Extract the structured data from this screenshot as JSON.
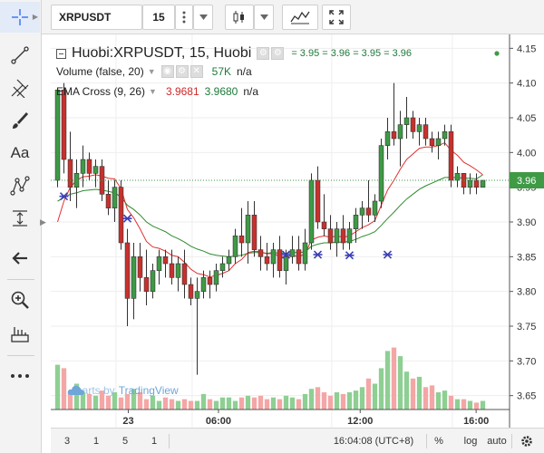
{
  "toolbar": {
    "symbol": "XRPUSDT",
    "interval": "15"
  },
  "legend": {
    "main_title": "Huobi:XRPUSDT, 15, Huobi",
    "ohlc": "= 3.95 = 3.96 = 3.95 = 3.96",
    "volume_title": "Volume (false, 20)",
    "volume_value": "57K",
    "volume_na": "n/a",
    "ema_title": "EMA Cross (9, 26)",
    "ema_fast": "3.9681",
    "ema_slow": "3.9680",
    "ema_na": "n/a"
  },
  "watermark": {
    "prefix": "charts by",
    "brand": "TradingView"
  },
  "price_axis": {
    "labels": [
      "4.15",
      "4.10",
      "4.05",
      "4.00",
      "3.95",
      "3.90",
      "3.85",
      "3.80",
      "3.75",
      "3.70",
      "3.65"
    ],
    "current_price": "3.96"
  },
  "time_axis": {
    "labels": [
      "23",
      "06:00",
      "12:00",
      "16:00"
    ]
  },
  "bottombar": {
    "ranges": [
      "3",
      "1",
      "5",
      "1"
    ],
    "clock": "16:04:08 (UTC+8)",
    "percent": "%",
    "log": "log",
    "auto": "auto"
  },
  "colors": {
    "up": "#3e9a45",
    "down": "#c9302c",
    "up_volume": "#8ecf93",
    "down_volume": "#f4a6a6",
    "ema_fast": "#e03030",
    "ema_slow": "#2e8b2e",
    "accent": "#2962ff"
  },
  "chart_data": {
    "type": "candlestick",
    "symbol": "XRPUSDT",
    "ylim": [
      3.63,
      4.17
    ],
    "candles": [
      {
        "o": 3.96,
        "h": 4.09,
        "l": 3.95,
        "c": 4.09
      },
      {
        "o": 4.09,
        "h": 4.1,
        "l": 3.97,
        "c": 3.99
      },
      {
        "o": 3.99,
        "h": 4.03,
        "l": 3.93,
        "c": 3.95
      },
      {
        "o": 3.95,
        "h": 3.99,
        "l": 3.92,
        "c": 3.97
      },
      {
        "o": 3.97,
        "h": 4.01,
        "l": 3.95,
        "c": 3.99
      },
      {
        "o": 3.99,
        "h": 4.0,
        "l": 3.96,
        "c": 3.97
      },
      {
        "o": 3.97,
        "h": 3.99,
        "l": 3.95,
        "c": 3.98
      },
      {
        "o": 3.98,
        "h": 3.99,
        "l": 3.93,
        "c": 3.94
      },
      {
        "o": 3.94,
        "h": 3.96,
        "l": 3.91,
        "c": 3.92
      },
      {
        "o": 3.92,
        "h": 3.96,
        "l": 3.9,
        "c": 3.95
      },
      {
        "o": 3.95,
        "h": 3.96,
        "l": 3.86,
        "c": 3.87
      },
      {
        "o": 3.87,
        "h": 3.89,
        "l": 3.75,
        "c": 3.79
      },
      {
        "o": 3.79,
        "h": 3.87,
        "l": 3.76,
        "c": 3.85
      },
      {
        "o": 3.85,
        "h": 3.87,
        "l": 3.8,
        "c": 3.82
      },
      {
        "o": 3.82,
        "h": 3.86,
        "l": 3.78,
        "c": 3.8
      },
      {
        "o": 3.8,
        "h": 3.84,
        "l": 3.79,
        "c": 3.83
      },
      {
        "o": 3.83,
        "h": 3.86,
        "l": 3.81,
        "c": 3.85
      },
      {
        "o": 3.85,
        "h": 3.86,
        "l": 3.82,
        "c": 3.84
      },
      {
        "o": 3.84,
        "h": 3.86,
        "l": 3.81,
        "c": 3.82
      },
      {
        "o": 3.82,
        "h": 3.85,
        "l": 3.8,
        "c": 3.84
      },
      {
        "o": 3.84,
        "h": 3.86,
        "l": 3.79,
        "c": 3.81
      },
      {
        "o": 3.81,
        "h": 3.82,
        "l": 3.78,
        "c": 3.79
      },
      {
        "o": 3.79,
        "h": 3.82,
        "l": 3.68,
        "c": 3.8
      },
      {
        "o": 3.8,
        "h": 3.83,
        "l": 3.79,
        "c": 3.82
      },
      {
        "o": 3.82,
        "h": 3.83,
        "l": 3.79,
        "c": 3.81
      },
      {
        "o": 3.81,
        "h": 3.84,
        "l": 3.8,
        "c": 3.83
      },
      {
        "o": 3.83,
        "h": 3.85,
        "l": 3.82,
        "c": 3.84
      },
      {
        "o": 3.84,
        "h": 3.86,
        "l": 3.83,
        "c": 3.85
      },
      {
        "o": 3.85,
        "h": 3.89,
        "l": 3.84,
        "c": 3.88
      },
      {
        "o": 3.88,
        "h": 3.92,
        "l": 3.85,
        "c": 3.87
      },
      {
        "o": 3.87,
        "h": 3.93,
        "l": 3.84,
        "c": 3.91
      },
      {
        "o": 3.91,
        "h": 3.93,
        "l": 3.85,
        "c": 3.86
      },
      {
        "o": 3.86,
        "h": 3.88,
        "l": 3.83,
        "c": 3.85
      },
      {
        "o": 3.85,
        "h": 3.87,
        "l": 3.83,
        "c": 3.84
      },
      {
        "o": 3.84,
        "h": 3.87,
        "l": 3.82,
        "c": 3.86
      },
      {
        "o": 3.86,
        "h": 3.88,
        "l": 3.82,
        "c": 3.83
      },
      {
        "o": 3.83,
        "h": 3.86,
        "l": 3.81,
        "c": 3.85
      },
      {
        "o": 3.85,
        "h": 3.88,
        "l": 3.84,
        "c": 3.86
      },
      {
        "o": 3.86,
        "h": 3.88,
        "l": 3.83,
        "c": 3.84
      },
      {
        "o": 3.84,
        "h": 3.89,
        "l": 3.83,
        "c": 3.87
      },
      {
        "o": 3.87,
        "h": 3.97,
        "l": 3.86,
        "c": 3.96
      },
      {
        "o": 3.96,
        "h": 3.98,
        "l": 3.89,
        "c": 3.9
      },
      {
        "o": 3.9,
        "h": 3.94,
        "l": 3.88,
        "c": 3.89
      },
      {
        "o": 3.89,
        "h": 3.91,
        "l": 3.86,
        "c": 3.87
      },
      {
        "o": 3.87,
        "h": 3.9,
        "l": 3.85,
        "c": 3.89
      },
      {
        "o": 3.89,
        "h": 3.91,
        "l": 3.86,
        "c": 3.87
      },
      {
        "o": 3.87,
        "h": 3.9,
        "l": 3.86,
        "c": 3.89
      },
      {
        "o": 3.89,
        "h": 3.92,
        "l": 3.87,
        "c": 3.91
      },
      {
        "o": 3.91,
        "h": 3.93,
        "l": 3.89,
        "c": 3.92
      },
      {
        "o": 3.92,
        "h": 3.96,
        "l": 3.9,
        "c": 3.91
      },
      {
        "o": 3.91,
        "h": 3.94,
        "l": 3.9,
        "c": 3.93
      },
      {
        "o": 3.93,
        "h": 4.02,
        "l": 3.92,
        "c": 4.01
      },
      {
        "o": 4.01,
        "h": 4.05,
        "l": 3.99,
        "c": 4.03
      },
      {
        "o": 4.03,
        "h": 4.1,
        "l": 4.01,
        "c": 4.02
      },
      {
        "o": 4.02,
        "h": 4.06,
        "l": 3.98,
        "c": 4.04
      },
      {
        "o": 4.04,
        "h": 4.08,
        "l": 4.02,
        "c": 4.05
      },
      {
        "o": 4.05,
        "h": 4.06,
        "l": 4.02,
        "c": 4.03
      },
      {
        "o": 4.03,
        "h": 4.05,
        "l": 4.01,
        "c": 4.04
      },
      {
        "o": 4.04,
        "h": 4.05,
        "l": 4.01,
        "c": 4.02
      },
      {
        "o": 4.02,
        "h": 4.03,
        "l": 4.0,
        "c": 4.01
      },
      {
        "o": 4.01,
        "h": 4.03,
        "l": 3.99,
        "c": 4.02
      },
      {
        "o": 4.02,
        "h": 4.04,
        "l": 4.01,
        "c": 4.03
      },
      {
        "o": 4.03,
        "h": 4.04,
        "l": 3.95,
        "c": 3.96
      },
      {
        "o": 3.96,
        "h": 3.98,
        "l": 3.95,
        "c": 3.97
      },
      {
        "o": 3.97,
        "h": 3.97,
        "l": 3.94,
        "c": 3.95
      },
      {
        "o": 3.95,
        "h": 3.97,
        "l": 3.94,
        "c": 3.96
      },
      {
        "o": 3.96,
        "h": 3.97,
        "l": 3.94,
        "c": 3.95
      },
      {
        "o": 3.95,
        "h": 3.96,
        "l": 3.95,
        "c": 3.96
      }
    ],
    "volumes": [
      52,
      48,
      22,
      30,
      20,
      18,
      16,
      22,
      16,
      20,
      14,
      18,
      24,
      20,
      12,
      16,
      10,
      14,
      12,
      10,
      12,
      10,
      10,
      18,
      12,
      10,
      14,
      14,
      10,
      14,
      16,
      14,
      16,
      12,
      14,
      12,
      16,
      14,
      12,
      18,
      24,
      26,
      20,
      16,
      20,
      18,
      20,
      22,
      26,
      36,
      30,
      48,
      68,
      72,
      62,
      44,
      36,
      38,
      26,
      28,
      20,
      22,
      16,
      12,
      12,
      10,
      8,
      10
    ],
    "ema_fast": [
      3.9,
      3.93,
      3.95,
      3.96,
      3.965,
      3.966,
      3.968,
      3.966,
      3.963,
      3.962,
      3.948,
      3.918,
      3.906,
      3.89,
      3.872,
      3.864,
      3.862,
      3.858,
      3.852,
      3.85,
      3.842,
      3.832,
      3.826,
      3.824,
      3.821,
      3.823,
      3.826,
      3.83,
      3.84,
      3.846,
      3.856,
      3.858,
      3.857,
      3.854,
      3.855,
      3.85,
      3.85,
      3.852,
      3.85,
      3.854,
      3.874,
      3.878,
      3.88,
      3.878,
      3.88,
      3.878,
      3.88,
      3.886,
      3.892,
      3.896,
      3.902,
      3.924,
      3.946,
      3.96,
      3.976,
      3.99,
      3.998,
      4.006,
      4.008,
      4.008,
      4.01,
      4.014,
      4.003,
      3.996,
      3.986,
      3.981,
      3.975,
      3.968
    ],
    "ema_slow": [
      3.93,
      3.935,
      3.94,
      3.942,
      3.945,
      3.946,
      3.947,
      3.946,
      3.944,
      3.942,
      3.936,
      3.924,
      3.918,
      3.91,
      3.9,
      3.894,
      3.89,
      3.886,
      3.88,
      3.876,
      3.871,
      3.865,
      3.861,
      3.858,
      3.854,
      3.852,
      3.851,
      3.85,
      3.851,
      3.852,
      3.855,
      3.856,
      3.856,
      3.855,
      3.856,
      3.855,
      3.855,
      3.856,
      3.856,
      3.857,
      3.865,
      3.868,
      3.87,
      3.87,
      3.871,
      3.871,
      3.872,
      3.875,
      3.879,
      3.882,
      3.886,
      3.895,
      3.905,
      3.914,
      3.924,
      3.933,
      3.94,
      3.947,
      3.952,
      3.956,
      3.96,
      3.964,
      3.964,
      3.964,
      3.963,
      3.963,
      3.962,
      3.968
    ]
  }
}
